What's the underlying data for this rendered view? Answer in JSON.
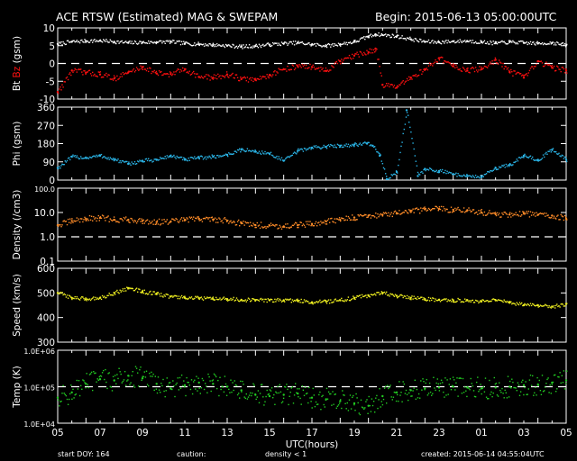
{
  "header": {
    "title": "ACE RTSW (Estimated) MAG & SWEPAM",
    "begin": "Begin: 2015-06-13 05:00:00UTC"
  },
  "footer": {
    "start_doy": "start DOY: 164",
    "caution": "caution:",
    "density_note": "density < 1",
    "created": "created: 2015-06-14 04:55:04UTC"
  },
  "colors": {
    "background": "#000000",
    "bt": "#ffffff",
    "bz": "#ff1010",
    "phi": "#2ab4e6",
    "density": "#ff8c28",
    "speed": "#f0f020",
    "temp": "#22cc22",
    "caution_accent": "#ff8c28"
  },
  "chart_data": [
    {
      "type": "scatter",
      "id": "mag",
      "ylabel_parts": [
        "Bt",
        "Bz",
        "(gsm)"
      ],
      "yticks": [
        "10",
        "5",
        "0",
        "-5",
        "-10"
      ],
      "ylim": [
        -10,
        10
      ],
      "reference_lines": [
        0
      ],
      "series": [
        {
          "name": "Bt",
          "x": [
            0,
            1,
            2,
            3,
            4,
            5,
            6,
            7,
            8,
            9,
            10,
            11,
            12,
            13,
            14,
            15,
            16,
            17,
            18,
            19,
            20,
            21,
            22,
            22.5,
            23,
            24,
            25,
            26,
            27,
            28,
            29,
            30,
            31,
            32,
            33,
            34,
            35,
            36
          ],
          "y": [
            5.5,
            6.1,
            6.3,
            6.4,
            6.1,
            5.8,
            5.9,
            6.0,
            6.1,
            5.6,
            5.4,
            5.2,
            5.0,
            4.7,
            4.9,
            5.3,
            5.6,
            5.8,
            5.3,
            5.0,
            5.4,
            6.1,
            7.6,
            8.2,
            8.0,
            7.6,
            6.8,
            6.1,
            6.0,
            6.2,
            6.3,
            6.0,
            5.7,
            6.0,
            5.8,
            5.6,
            5.8,
            5.1
          ]
        },
        {
          "name": "Bz",
          "x": [
            0,
            1,
            2,
            3,
            4,
            5,
            6,
            7,
            8,
            9,
            10,
            11,
            12,
            13,
            14,
            15,
            16,
            17,
            18,
            19,
            20,
            21,
            22,
            22.5,
            23,
            24,
            25,
            26,
            27,
            28,
            29,
            30,
            31,
            32,
            33,
            34,
            35,
            36
          ],
          "y": [
            -8.0,
            -2.0,
            -2.6,
            -3.1,
            -4.2,
            -2.5,
            -1.0,
            -2.8,
            -3.0,
            -1.6,
            -3.8,
            -4.0,
            -3.1,
            -4.4,
            -4.6,
            -3.2,
            -1.6,
            -0.8,
            -1.0,
            -2.1,
            0.6,
            2.2,
            3.2,
            4.2,
            -6.0,
            -6.8,
            -4.0,
            -1.6,
            1.5,
            -0.8,
            -2.0,
            -1.6,
            1.0,
            -2.4,
            -4.0,
            0.6,
            -1.2,
            -2.0
          ]
        }
      ]
    },
    {
      "type": "scatter",
      "id": "phi",
      "ylabel": "Phi (gsm)",
      "yticks": [
        "360",
        "270",
        "180",
        "90",
        "0"
      ],
      "ylim": [
        0,
        360
      ],
      "series": [
        {
          "name": "Phi",
          "x": [
            0,
            1,
            2,
            3,
            4,
            5,
            6,
            7,
            8,
            9,
            10,
            11,
            12,
            13,
            14,
            15,
            16,
            17,
            18,
            19,
            20,
            21,
            21.9,
            22.3,
            22.8,
            23.3,
            24,
            24.7,
            25.5,
            26,
            27,
            28,
            29,
            30,
            31,
            32,
            33,
            34,
            35,
            36
          ],
          "y": [
            60,
            115,
            110,
            120,
            100,
            80,
            95,
            100,
            120,
            100,
            110,
            115,
            125,
            150,
            140,
            130,
            95,
            145,
            160,
            165,
            170,
            175,
            180,
            170,
            120,
            5,
            40,
            345,
            20,
            55,
            45,
            30,
            20,
            15,
            60,
            75,
            120,
            100,
            150,
            100
          ]
        }
      ]
    },
    {
      "type": "scatter",
      "id": "density",
      "ylabel": "Density (/cm3)",
      "ylog": true,
      "yticks": [
        "100.0",
        "10.0",
        "1.0",
        "0.1"
      ],
      "ylim": [
        0.1,
        100
      ],
      "reference_lines": [
        1
      ],
      "series": [
        {
          "name": "Density",
          "x": [
            0,
            1,
            2,
            3,
            4,
            5,
            6,
            7,
            8,
            9,
            10,
            11,
            12,
            13,
            14,
            15,
            16,
            17,
            18,
            19,
            20,
            21,
            22,
            23,
            24,
            25,
            26,
            27,
            28,
            29,
            30,
            31,
            32,
            33,
            34,
            35,
            36
          ],
          "y": [
            3.0,
            4.5,
            5.5,
            6.0,
            5.0,
            5.0,
            4.5,
            4.0,
            4.2,
            5.0,
            5.5,
            5.2,
            4.6,
            3.6,
            3.0,
            2.9,
            2.7,
            3.0,
            3.4,
            4.3,
            5.0,
            6.2,
            7.5,
            8.0,
            9.0,
            10.5,
            13.5,
            14.0,
            13.0,
            12.5,
            10.0,
            8.5,
            8.2,
            9.0,
            8.0,
            7.5,
            5.5
          ]
        }
      ]
    },
    {
      "type": "scatter",
      "id": "speed",
      "ylabel": "Speed (km/s)",
      "yticks": [
        "600",
        "500",
        "400",
        "300"
      ],
      "ylim": [
        300,
        600
      ],
      "series": [
        {
          "name": "Speed",
          "x": [
            0,
            1,
            2,
            3,
            4,
            5,
            6,
            7,
            8,
            9,
            10,
            11,
            12,
            13,
            14,
            15,
            16,
            17,
            18,
            19,
            20,
            21,
            22,
            23,
            24,
            25,
            26,
            27,
            28,
            29,
            30,
            31,
            32,
            33,
            34,
            35,
            36
          ],
          "y": [
            500,
            480,
            475,
            480,
            500,
            520,
            505,
            495,
            485,
            480,
            478,
            475,
            475,
            472,
            470,
            470,
            470,
            468,
            462,
            465,
            470,
            480,
            490,
            500,
            488,
            480,
            475,
            472,
            470,
            470,
            465,
            470,
            460,
            450,
            450,
            445,
            455
          ]
        }
      ]
    },
    {
      "type": "scatter",
      "id": "temp",
      "ylabel": "Temp (K)",
      "ylog": true,
      "yticks": [
        "1.0E+06",
        "1.0E+05",
        "1.0E+04"
      ],
      "ylim": [
        10000,
        1000000
      ],
      "reference_lines": [
        100000
      ],
      "xlabel": "UTC(hours)",
      "xticks": [
        "05",
        "07",
        "09",
        "11",
        "13",
        "15",
        "17",
        "19",
        "21",
        "23",
        "01",
        "03",
        "05"
      ],
      "series": [
        {
          "name": "Temp",
          "x": [
            0,
            1,
            2,
            3,
            4,
            5,
            6,
            7,
            8,
            9,
            10,
            11,
            12,
            13,
            14,
            15,
            16,
            17,
            18,
            19,
            20,
            21,
            22,
            23,
            24,
            25,
            26,
            27,
            28,
            29,
            30,
            31,
            32,
            33,
            34,
            35,
            36
          ],
          "y": [
            50000,
            70000,
            120000,
            160000,
            150000,
            200000,
            170000,
            120000,
            90000,
            110000,
            130000,
            120000,
            100000,
            80000,
            60000,
            55000,
            60000,
            65000,
            50000,
            45000,
            40000,
            35000,
            30000,
            55000,
            70000,
            80000,
            90000,
            95000,
            100000,
            95000,
            90000,
            95000,
            100000,
            110000,
            115000,
            130000,
            150000
          ]
        }
      ]
    }
  ]
}
